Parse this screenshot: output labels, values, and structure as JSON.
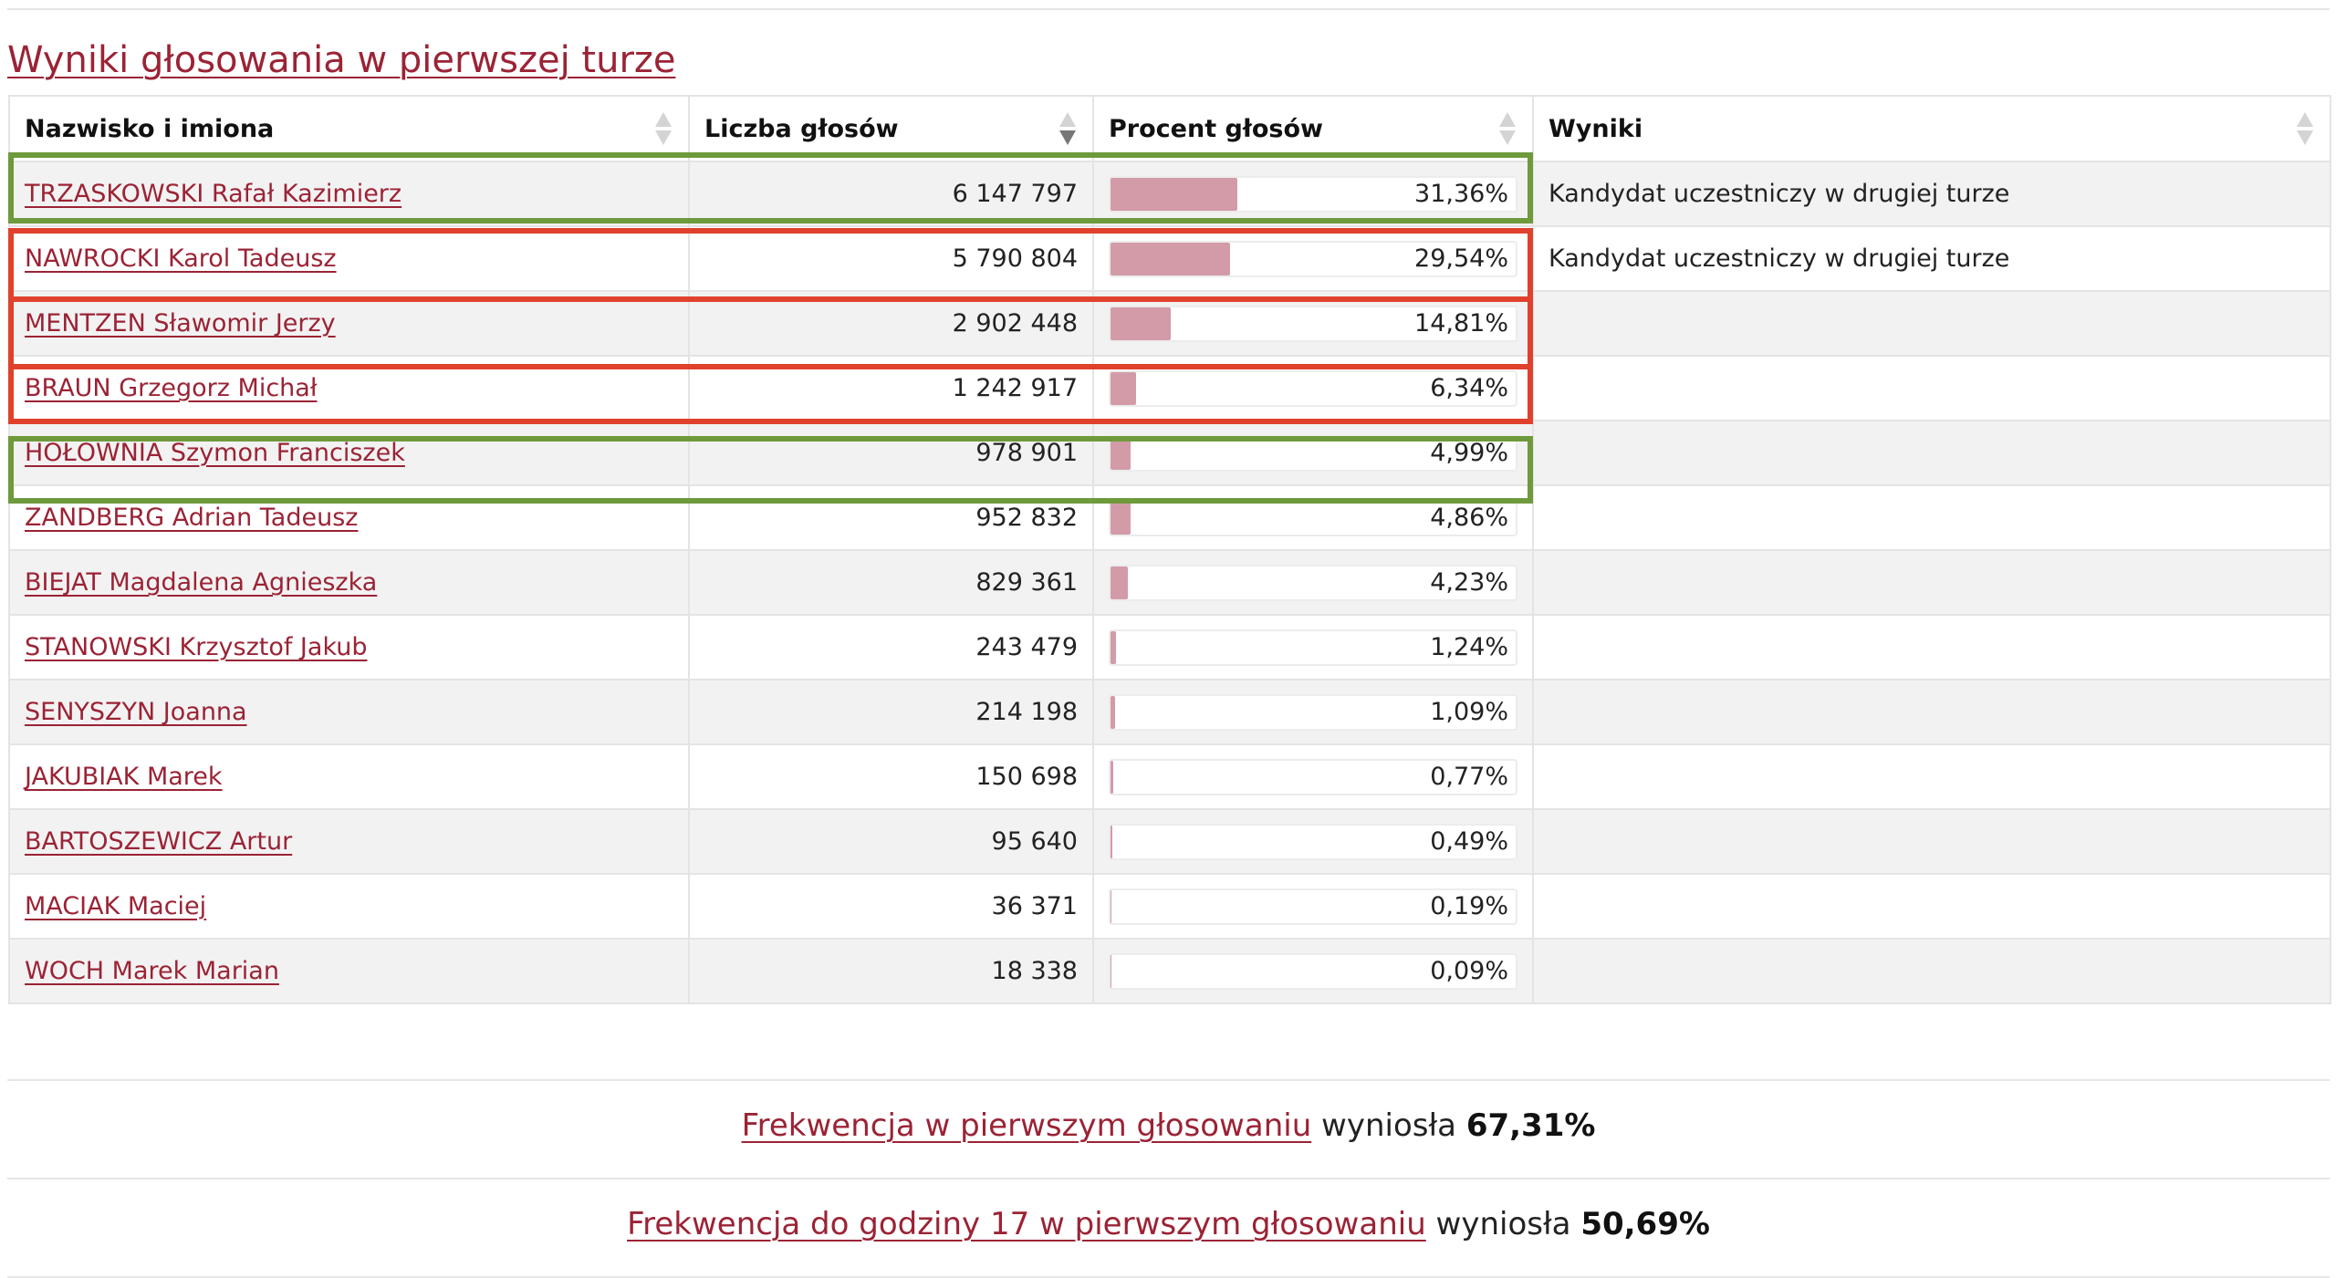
{
  "title": "Wyniki głosowania w pierwszej turze",
  "table": {
    "headers": {
      "name": "Nazwisko i imiona",
      "votes": "Liczba głosów",
      "percent": "Procent głosów",
      "result": "Wyniki"
    },
    "sorted_by": "Liczba głosów",
    "sort_direction": "descending",
    "rows": [
      {
        "name": "TRZASKOWSKI Rafał Kazimierz",
        "votes": "6 147 797",
        "percent": "31,36%",
        "percent_value": 31.36,
        "result": "Kandydat uczestniczy w drugiej turze"
      },
      {
        "name": "NAWROCKI Karol Tadeusz",
        "votes": "5 790 804",
        "percent": "29,54%",
        "percent_value": 29.54,
        "result": "Kandydat uczestniczy w drugiej turze"
      },
      {
        "name": "MENTZEN Sławomir Jerzy",
        "votes": "2 902 448",
        "percent": "14,81%",
        "percent_value": 14.81,
        "result": ""
      },
      {
        "name": "BRAUN Grzegorz Michał",
        "votes": "1 242 917",
        "percent": "6,34%",
        "percent_value": 6.34,
        "result": ""
      },
      {
        "name": "HOŁOWNIA Szymon Franciszek",
        "votes": "978 901",
        "percent": "4,99%",
        "percent_value": 4.99,
        "result": ""
      },
      {
        "name": "ZANDBERG Adrian Tadeusz",
        "votes": "952 832",
        "percent": "4,86%",
        "percent_value": 4.86,
        "result": ""
      },
      {
        "name": "BIEJAT Magdalena Agnieszka",
        "votes": "829 361",
        "percent": "4,23%",
        "percent_value": 4.23,
        "result": ""
      },
      {
        "name": "STANOWSKI Krzysztof Jakub",
        "votes": "243 479",
        "percent": "1,24%",
        "percent_value": 1.24,
        "result": ""
      },
      {
        "name": "SENYSZYN Joanna",
        "votes": "214 198",
        "percent": "1,09%",
        "percent_value": 1.09,
        "result": ""
      },
      {
        "name": "JAKUBIAK Marek",
        "votes": "150 698",
        "percent": "0,77%",
        "percent_value": 0.77,
        "result": ""
      },
      {
        "name": "BARTOSZEWICZ Artur",
        "votes": "95 640",
        "percent": "0,49%",
        "percent_value": 0.49,
        "result": ""
      },
      {
        "name": "MACIAK Maciej",
        "votes": "36 371",
        "percent": "0,19%",
        "percent_value": 0.19,
        "result": ""
      },
      {
        "name": "WOCH Marek Marian",
        "votes": "18 338",
        "percent": "0,09%",
        "percent_value": 0.09,
        "result": ""
      }
    ]
  },
  "highlights": {
    "green_rows": [
      "TRZASKOWSKI Rafał Kazimierz",
      "HOŁOWNIA Szymon Franciszek"
    ],
    "red_rows": [
      "NAWROCKI Karol Tadeusz",
      "MENTZEN Sławomir Jerzy",
      "BRAUN Grzegorz Michał"
    ],
    "green_color": "#6e9a3c",
    "red_color": "#e0412c"
  },
  "turnout": [
    {
      "link": "Frekwencja w pierwszym głosowaniu",
      "text": " wyniosła ",
      "value": "67,31%"
    },
    {
      "link": "Frekwencja do godziny 17 w pierwszym głosowaniu",
      "text": " wyniosła ",
      "value": "50,69%"
    }
  ],
  "colors": {
    "link": "#9b2335",
    "bar_fill": "#d39ba8",
    "row_stripe": "#f2f2f2"
  }
}
